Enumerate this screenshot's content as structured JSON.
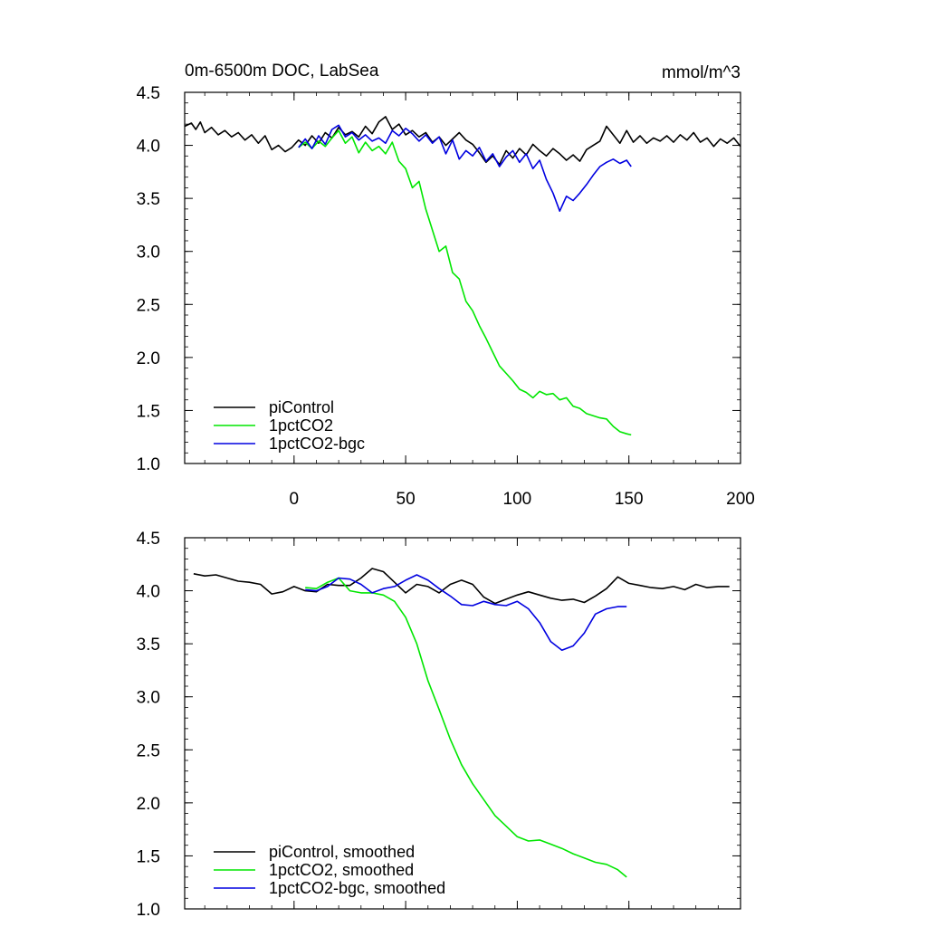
{
  "title_left": "0m-6500m DOC, LabSea",
  "title_right": "mmol/m^3",
  "colors": {
    "piControl": "#000000",
    "1pctCO2": "#00e600",
    "bgc": "#0000e0"
  },
  "chart_data": [
    {
      "type": "line",
      "panel": "top",
      "title": "0m-6500m DOC, LabSea",
      "units": "mmol/m^3",
      "xlim": [
        -49,
        200
      ],
      "ylim": [
        1.0,
        4.5
      ],
      "xticks": [
        0,
        50,
        100,
        150,
        200
      ],
      "xtick_labels": [
        "0",
        "50",
        "100",
        "150",
        "200"
      ],
      "yticks": [
        1.0,
        1.5,
        2.0,
        2.5,
        3.0,
        3.5,
        4.0,
        4.5
      ],
      "ytick_labels": [
        "1.0",
        "1.5",
        "2.0",
        "2.5",
        "3.0",
        "3.5",
        "4.0",
        "4.5"
      ],
      "legend_position": "bottom-left",
      "series": [
        {
          "name": "piControl",
          "color": "#000000",
          "x": [
            -49,
            -46,
            -44,
            -42,
            -40,
            -37,
            -34,
            -31,
            -28,
            -25,
            -22,
            -19,
            -16,
            -13,
            -10,
            -7,
            -4,
            -1,
            2,
            5,
            8,
            11,
            14,
            17,
            20,
            23,
            26,
            29,
            32,
            35,
            38,
            41,
            44,
            47,
            50,
            53,
            56,
            59,
            62,
            65,
            68,
            71,
            74,
            77,
            80,
            83,
            86,
            89,
            92,
            95,
            98,
            101,
            104,
            107,
            110,
            113,
            116,
            119,
            122,
            125,
            128,
            131,
            134,
            137,
            140,
            143,
            146,
            149,
            152,
            155,
            158,
            161,
            164,
            167,
            170,
            173,
            176,
            179,
            182,
            185,
            188,
            191,
            194,
            197,
            200
          ],
          "values": [
            4.18,
            4.21,
            4.15,
            4.22,
            4.12,
            4.17,
            4.1,
            4.14,
            4.08,
            4.12,
            4.05,
            4.1,
            4.02,
            4.09,
            3.96,
            4.0,
            3.94,
            3.98,
            4.05,
            4.0,
            4.09,
            4.02,
            4.12,
            4.07,
            4.17,
            4.1,
            4.13,
            4.08,
            4.18,
            4.11,
            4.22,
            4.27,
            4.15,
            4.2,
            4.1,
            4.14,
            4.08,
            4.12,
            4.03,
            4.08,
            4.0,
            4.06,
            4.12,
            4.05,
            4.01,
            3.93,
            3.84,
            3.9,
            3.82,
            3.95,
            3.88,
            3.97,
            3.91,
            4.01,
            3.95,
            3.9,
            3.97,
            3.92,
            3.86,
            3.91,
            3.85,
            3.96,
            4.0,
            4.04,
            4.18,
            4.1,
            4.02,
            4.14,
            4.03,
            4.09,
            4.02,
            4.07,
            4.04,
            4.09,
            4.03,
            4.1,
            4.05,
            4.12,
            4.03,
            4.07,
            3.99,
            4.06,
            4.02,
            4.07,
            3.99
          ]
        },
        {
          "name": "1pctCO2",
          "color": "#00e600",
          "x": [
            2,
            5,
            8,
            11,
            14,
            17,
            20,
            23,
            26,
            29,
            32,
            35,
            38,
            41,
            44,
            47,
            50,
            53,
            56,
            59,
            62,
            65,
            68,
            71,
            74,
            77,
            80,
            83,
            86,
            89,
            92,
            95,
            98,
            101,
            104,
            107,
            110,
            113,
            116,
            119,
            122,
            125,
            128,
            131,
            134,
            137,
            140,
            143,
            146,
            149,
            151
          ],
          "values": [
            3.98,
            4.03,
            3.97,
            4.04,
            3.99,
            4.07,
            4.14,
            4.02,
            4.08,
            3.93,
            4.03,
            3.95,
            3.99,
            3.92,
            4.03,
            3.85,
            3.78,
            3.6,
            3.66,
            3.4,
            3.2,
            3.0,
            3.05,
            2.8,
            2.74,
            2.53,
            2.44,
            2.3,
            2.18,
            2.05,
            1.92,
            1.85,
            1.78,
            1.7,
            1.67,
            1.62,
            1.68,
            1.65,
            1.66,
            1.6,
            1.62,
            1.54,
            1.52,
            1.47,
            1.45,
            1.43,
            1.42,
            1.35,
            1.3,
            1.28,
            1.27
          ]
        },
        {
          "name": "1pctCO2-bgc",
          "color": "#0000e0",
          "x": [
            2,
            5,
            8,
            11,
            14,
            17,
            20,
            23,
            26,
            29,
            32,
            35,
            38,
            41,
            44,
            47,
            50,
            53,
            56,
            59,
            62,
            65,
            68,
            71,
            74,
            77,
            80,
            83,
            86,
            89,
            92,
            95,
            98,
            101,
            104,
            107,
            110,
            113,
            116,
            119,
            122,
            125,
            128,
            131,
            134,
            137,
            140,
            143,
            146,
            149,
            151
          ],
          "values": [
            3.98,
            4.06,
            3.97,
            4.09,
            4.01,
            4.15,
            4.19,
            4.08,
            4.12,
            4.05,
            4.1,
            4.04,
            4.07,
            4.02,
            4.14,
            4.09,
            4.16,
            4.11,
            4.04,
            4.1,
            4.02,
            4.08,
            3.92,
            4.05,
            3.87,
            3.95,
            3.9,
            3.98,
            3.85,
            3.92,
            3.8,
            3.89,
            3.95,
            3.84,
            3.92,
            3.78,
            3.86,
            3.68,
            3.55,
            3.38,
            3.52,
            3.48,
            3.55,
            3.63,
            3.72,
            3.8,
            3.84,
            3.87,
            3.83,
            3.86,
            3.8
          ]
        }
      ]
    },
    {
      "type": "line",
      "panel": "bottom",
      "xlim": [
        -49,
        200
      ],
      "ylim": [
        1.0,
        4.5
      ],
      "xticks": [
        0,
        50,
        100,
        150,
        200
      ],
      "yticks": [
        1.0,
        1.5,
        2.0,
        2.5,
        3.0,
        3.5,
        4.0,
        4.5
      ],
      "ytick_labels": [
        "1.0",
        "1.5",
        "2.0",
        "2.5",
        "3.0",
        "3.5",
        "4.0",
        "4.5"
      ],
      "legend_position": "bottom-left",
      "series": [
        {
          "name": "piControl, smoothed",
          "color": "#000000",
          "x": [
            -45,
            -40,
            -35,
            -30,
            -25,
            -20,
            -15,
            -10,
            -5,
            0,
            5,
            10,
            15,
            20,
            25,
            30,
            35,
            40,
            45,
            50,
            55,
            60,
            65,
            70,
            75,
            80,
            85,
            90,
            95,
            100,
            105,
            110,
            115,
            120,
            125,
            130,
            135,
            140,
            145,
            150,
            155,
            160,
            165,
            170,
            175,
            180,
            185,
            190,
            195
          ],
          "values": [
            4.16,
            4.14,
            4.15,
            4.12,
            4.09,
            4.08,
            4.06,
            3.97,
            3.99,
            4.04,
            4.0,
            3.99,
            4.06,
            4.05,
            4.05,
            4.12,
            4.21,
            4.18,
            4.08,
            3.98,
            4.06,
            4.04,
            3.98,
            4.06,
            4.1,
            4.06,
            3.94,
            3.88,
            3.92,
            3.96,
            3.99,
            3.96,
            3.93,
            3.91,
            3.92,
            3.89,
            3.95,
            4.02,
            4.13,
            4.07,
            4.05,
            4.03,
            4.02,
            4.04,
            4.01,
            4.06,
            4.03,
            4.04,
            4.04
          ]
        },
        {
          "name": "1pctCO2, smoothed",
          "color": "#00e600",
          "x": [
            5,
            10,
            15,
            20,
            25,
            30,
            35,
            40,
            45,
            50,
            55,
            60,
            65,
            70,
            75,
            80,
            85,
            90,
            95,
            100,
            105,
            110,
            115,
            120,
            125,
            130,
            135,
            140,
            145,
            149
          ],
          "values": [
            4.03,
            4.02,
            4.08,
            4.12,
            4.0,
            3.98,
            3.98,
            3.96,
            3.9,
            3.75,
            3.5,
            3.15,
            2.88,
            2.6,
            2.36,
            2.18,
            2.03,
            1.88,
            1.78,
            1.68,
            1.64,
            1.65,
            1.61,
            1.57,
            1.52,
            1.48,
            1.44,
            1.42,
            1.37,
            1.3
          ]
        },
        {
          "name": "1pctCO2-bgc, smoothed",
          "color": "#0000e0",
          "x": [
            5,
            10,
            15,
            20,
            25,
            30,
            35,
            40,
            45,
            50,
            55,
            60,
            65,
            70,
            75,
            80,
            85,
            90,
            95,
            100,
            105,
            110,
            115,
            120,
            125,
            130,
            135,
            140,
            145,
            149
          ],
          "values": [
            4.01,
            4.0,
            4.04,
            4.12,
            4.11,
            4.06,
            3.98,
            4.02,
            4.04,
            4.1,
            4.15,
            4.1,
            4.02,
            3.95,
            3.87,
            3.86,
            3.9,
            3.87,
            3.86,
            3.9,
            3.83,
            3.7,
            3.52,
            3.44,
            3.48,
            3.6,
            3.78,
            3.83,
            3.85,
            3.85
          ]
        }
      ]
    }
  ]
}
